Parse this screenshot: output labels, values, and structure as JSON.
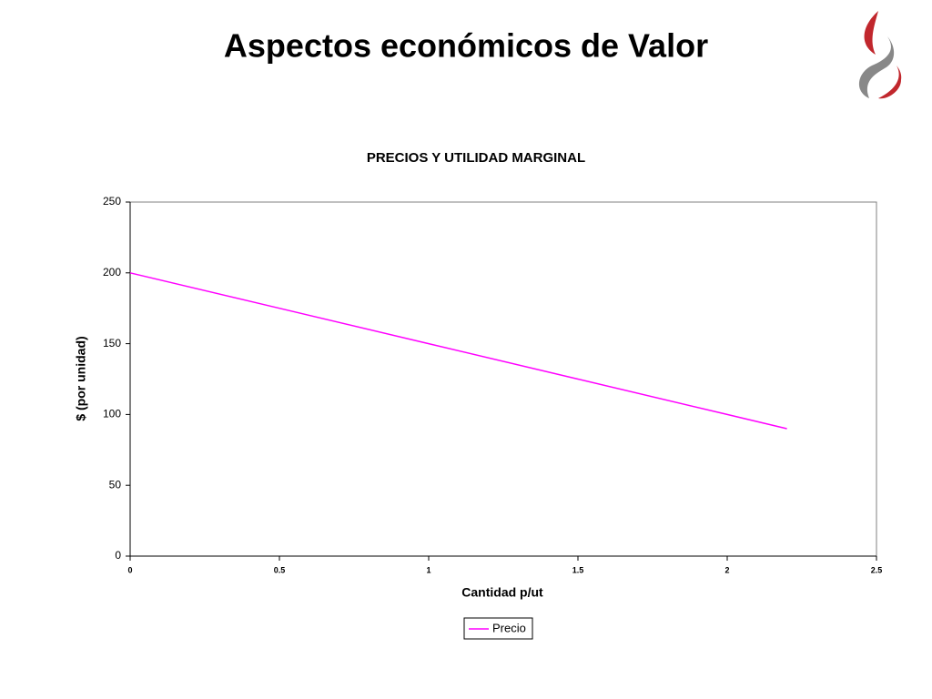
{
  "slide": {
    "title": "Aspectos económicos de Valor"
  },
  "chart_data": {
    "type": "line",
    "title": "PRECIOS Y UTILIDAD MARGINAL",
    "x_label": "Cantidad p/ut",
    "y_label": "$ (por unidad)",
    "x": [
      0,
      0.5,
      1,
      1.5,
      2,
      2.2
    ],
    "series": [
      {
        "name": "Precio",
        "color": "#ff00ff",
        "values": [
          200,
          175,
          150,
          125,
          100,
          90
        ]
      }
    ],
    "xlim": [
      0,
      2.5
    ],
    "xticks": [
      0,
      0.5,
      1,
      1.5,
      2,
      2.5
    ],
    "ylim": [
      0,
      250
    ],
    "yticks": [
      0,
      50,
      100,
      150,
      200,
      250
    ],
    "grid": false,
    "legend": "bottom"
  }
}
